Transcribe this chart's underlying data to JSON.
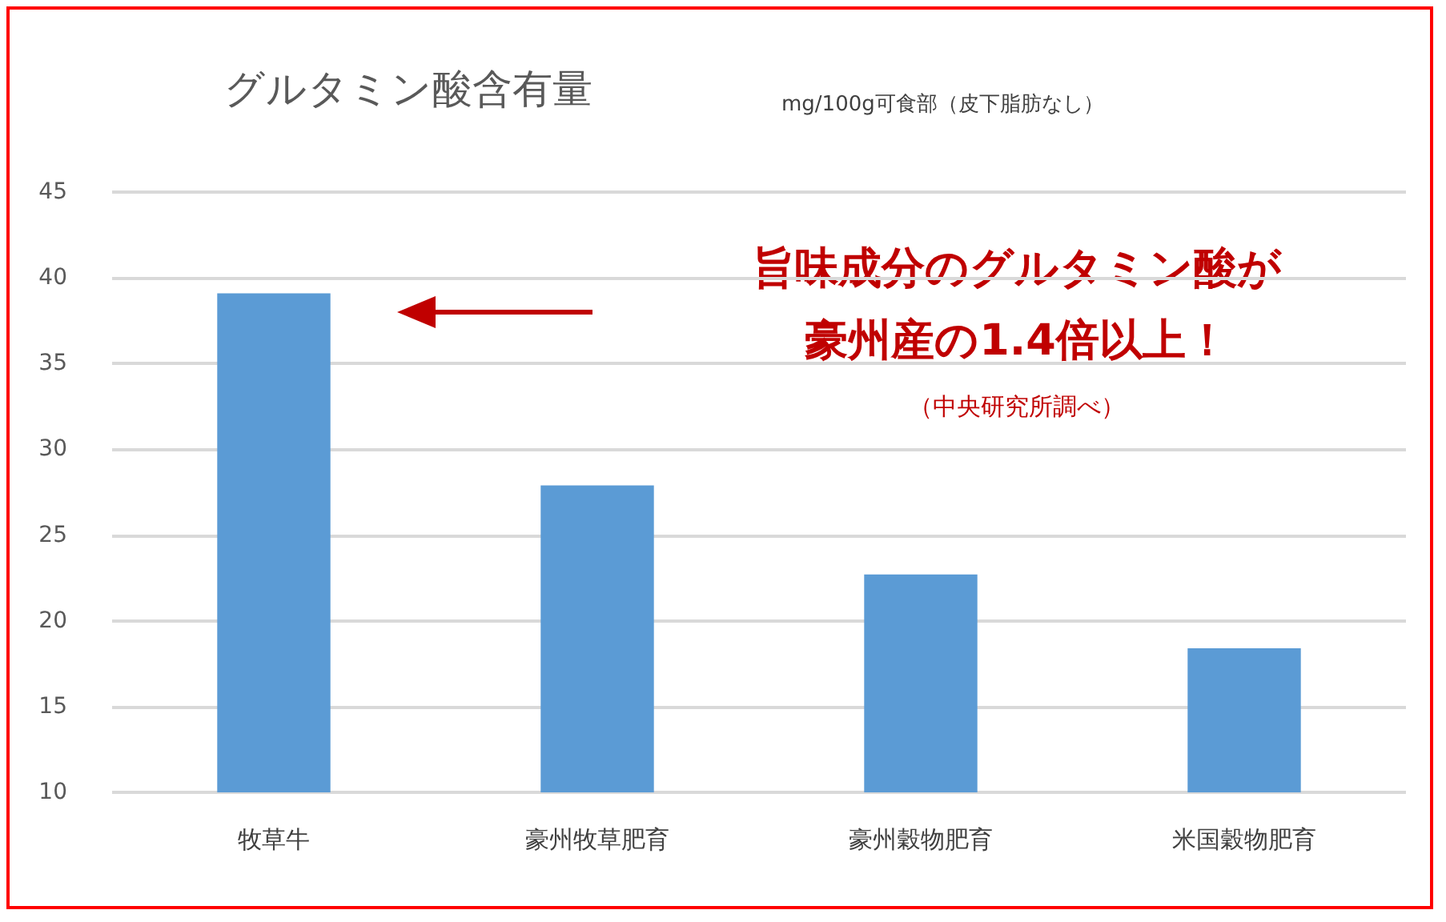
{
  "chart_data": {
    "type": "bar",
    "title": "グルタミン酸含有量",
    "subtitle": "mg/100g可食部（皮下脂肪なし）",
    "categories": [
      "牧草牛",
      "豪州牧草肥育",
      "豪州穀物肥育",
      "米国穀物肥育"
    ],
    "values": [
      39.1,
      27.9,
      22.7,
      18.4
    ],
    "color": "#5b9bd5",
    "ylim": [
      10,
      45
    ],
    "yticks": [
      10,
      15,
      20,
      25,
      30,
      35,
      40,
      45
    ],
    "grid": "y",
    "annotations": [
      "旨味成分のグルタミン酸が",
      "豪州産の1.4倍以上！",
      "（中央研究所調べ）"
    ]
  }
}
